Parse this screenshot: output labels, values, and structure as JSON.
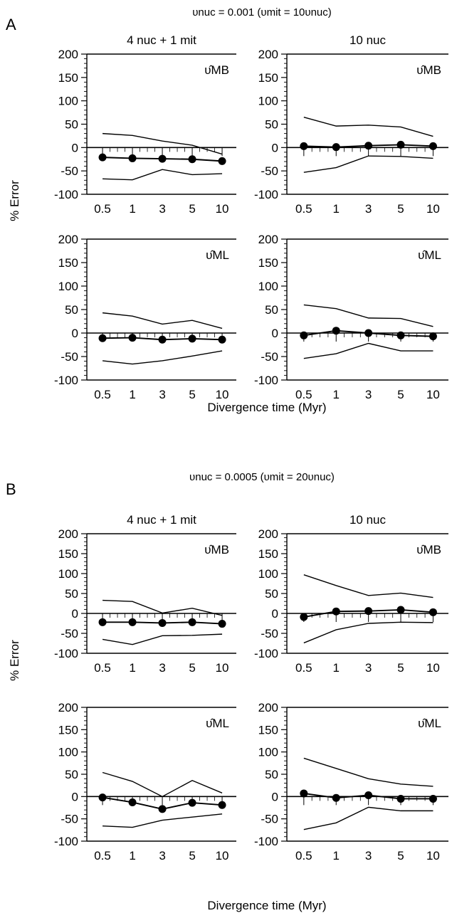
{
  "figures": [
    {
      "letter": "A",
      "condition": "υnuc = 0.001   (υmit = 10υnuc)",
      "ylabel": "% Error",
      "xlabel": "Divergence time (Myr)"
    },
    {
      "letter": "B",
      "condition": "υnuc = 0.0005 (υmit = 20υnuc)",
      "ylabel": "% Error",
      "xlabel": "Divergence time (Myr)"
    }
  ],
  "chart_data": [
    {
      "type": "line",
      "figure": "A",
      "column_title": "4 nuc + 1 mit",
      "estimator": "υ̂MB",
      "categories": [
        "0.5",
        "1",
        "3",
        "5",
        "10"
      ],
      "ylim": [
        -100,
        200
      ],
      "yticks": [
        -100,
        -50,
        0,
        50,
        100,
        150,
        200
      ],
      "series": [
        {
          "role": "upper",
          "values": [
            30,
            26,
            14,
            5,
            -14
          ]
        },
        {
          "role": "mean",
          "values": [
            -21,
            -23,
            -24,
            -25,
            -29
          ]
        },
        {
          "role": "lower",
          "values": [
            -67,
            -69,
            -47,
            -58,
            -56
          ]
        }
      ]
    },
    {
      "type": "line",
      "figure": "A",
      "column_title": "10 nuc",
      "estimator": "υ̂MB",
      "categories": [
        "0.5",
        "1",
        "3",
        "5",
        "10"
      ],
      "ylim": [
        -100,
        200
      ],
      "yticks": [
        -100,
        -50,
        0,
        50,
        100,
        150,
        200
      ],
      "series": [
        {
          "role": "upper",
          "values": [
            65,
            46,
            48,
            44,
            24
          ]
        },
        {
          "role": "mean",
          "values": [
            3,
            1,
            4,
            6,
            3
          ]
        },
        {
          "role": "lower",
          "values": [
            -53,
            -43,
            -18,
            -19,
            -23
          ]
        }
      ]
    },
    {
      "type": "line",
      "figure": "A",
      "column_title": "4 nuc + 1 mit",
      "estimator": "υ̂ML",
      "categories": [
        "0.5",
        "1",
        "3",
        "5",
        "10"
      ],
      "ylim": [
        -100,
        200
      ],
      "yticks": [
        -100,
        -50,
        0,
        50,
        100,
        150,
        200
      ],
      "series": [
        {
          "role": "upper",
          "values": [
            43,
            36,
            19,
            27,
            10
          ]
        },
        {
          "role": "mean",
          "values": [
            -11,
            -10,
            -14,
            -12,
            -14
          ]
        },
        {
          "role": "lower",
          "values": [
            -59,
            -66,
            -59,
            -49,
            -38
          ]
        }
      ]
    },
    {
      "type": "line",
      "figure": "A",
      "column_title": "10 nuc",
      "estimator": "υ̂ML",
      "categories": [
        "0.5",
        "1",
        "3",
        "5",
        "10"
      ],
      "ylim": [
        -100,
        200
      ],
      "yticks": [
        -100,
        -50,
        0,
        50,
        100,
        150,
        200
      ],
      "series": [
        {
          "role": "upper",
          "values": [
            60,
            52,
            32,
            31,
            14
          ]
        },
        {
          "role": "mean",
          "values": [
            -5,
            5,
            0,
            -5,
            -7
          ]
        },
        {
          "role": "lower",
          "values": [
            -54,
            -44,
            -22,
            -38,
            -38
          ]
        }
      ]
    },
    {
      "type": "line",
      "figure": "B",
      "column_title": "4 nuc + 1 mit",
      "estimator": "υ̂MB",
      "categories": [
        "0.5",
        "1",
        "3",
        "5",
        "10"
      ],
      "ylim": [
        -100,
        200
      ],
      "yticks": [
        -100,
        -50,
        0,
        50,
        100,
        150,
        200
      ],
      "series": [
        {
          "role": "upper",
          "values": [
            33,
            30,
            1,
            13,
            -5
          ]
        },
        {
          "role": "mean",
          "values": [
            -22,
            -22,
            -24,
            -22,
            -26
          ]
        },
        {
          "role": "lower",
          "values": [
            -65,
            -78,
            -56,
            -55,
            -52
          ]
        }
      ]
    },
    {
      "type": "line",
      "figure": "B",
      "column_title": "10 nuc",
      "estimator": "υ̂MB",
      "categories": [
        "0.5",
        "1",
        "3",
        "5",
        "10"
      ],
      "ylim": [
        -100,
        200
      ],
      "yticks": [
        -100,
        -50,
        0,
        50,
        100,
        150,
        200
      ],
      "series": [
        {
          "role": "upper",
          "values": [
            97,
            70,
            45,
            51,
            40
          ]
        },
        {
          "role": "mean",
          "values": [
            -9,
            5,
            6,
            9,
            3
          ]
        },
        {
          "role": "lower",
          "values": [
            -74,
            -41,
            -25,
            -22,
            -23
          ]
        }
      ]
    },
    {
      "type": "line",
      "figure": "B",
      "column_title": "4 nuc + 1 mit",
      "estimator": "υ̂ML",
      "categories": [
        "0.5",
        "1",
        "3",
        "5",
        "10"
      ],
      "ylim": [
        -100,
        200
      ],
      "yticks": [
        -100,
        -50,
        0,
        50,
        100,
        150,
        200
      ],
      "series": [
        {
          "role": "upper",
          "values": [
            54,
            34,
            0,
            36,
            8
          ]
        },
        {
          "role": "mean",
          "values": [
            -2,
            -13,
            -28,
            -14,
            -19
          ]
        },
        {
          "role": "lower",
          "values": [
            -66,
            -69,
            -53,
            -46,
            -39
          ]
        }
      ]
    },
    {
      "type": "line",
      "figure": "B",
      "column_title": "10 nuc",
      "estimator": "υ̂ML",
      "categories": [
        "0.5",
        "1",
        "3",
        "5",
        "10"
      ],
      "ylim": [
        -100,
        200
      ],
      "yticks": [
        -100,
        -50,
        0,
        50,
        100,
        150,
        200
      ],
      "series": [
        {
          "role": "upper",
          "values": [
            86,
            63,
            40,
            28,
            23
          ]
        },
        {
          "role": "mean",
          "values": [
            7,
            -3,
            3,
            -5,
            -5
          ]
        },
        {
          "role": "lower",
          "values": [
            -74,
            -59,
            -24,
            -32,
            -32
          ]
        }
      ]
    }
  ]
}
